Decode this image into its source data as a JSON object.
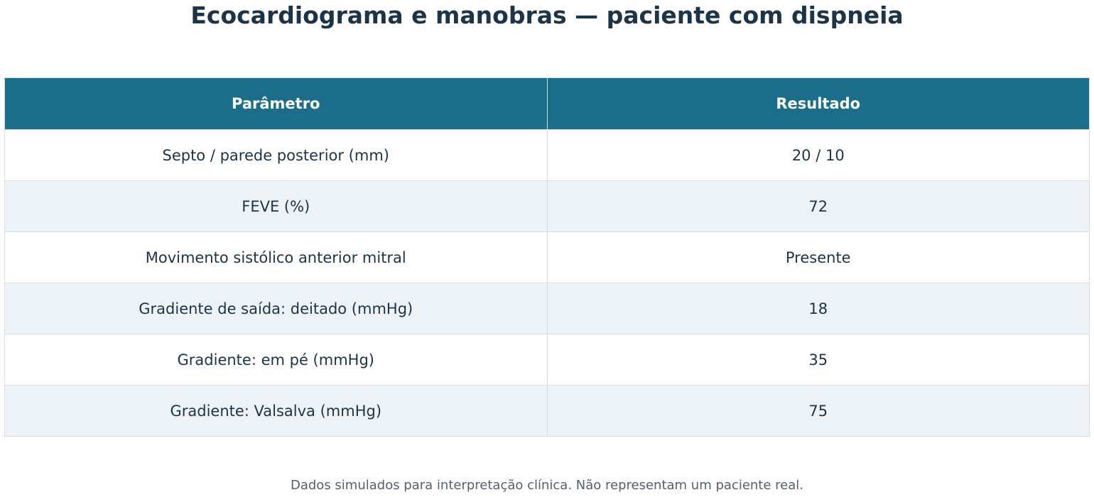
{
  "title": "Ecocardiograma e manobras — paciente com dispneia",
  "table": {
    "headers": [
      "Parâmetro",
      "Resultado"
    ],
    "rows": [
      [
        "Septo / parede posterior (mm)",
        "20 / 10"
      ],
      [
        "FEVE (%)",
        "72"
      ],
      [
        "Movimento sistólico anterior mitral",
        "Presente"
      ],
      [
        "Gradiente de saída: deitado (mmHg)",
        "18"
      ],
      [
        "Gradiente: em pé (mmHg)",
        "35"
      ],
      [
        "Gradiente: Valsalva (mmHg)",
        "75"
      ]
    ]
  },
  "footnote": "Dados simulados para interpretação clínica. Não representam um paciente real.",
  "colors": {
    "header_bg": "#1a6e89",
    "header_text": "#ffffff",
    "title_text": "#1b3448",
    "row_alt_bg": "#eef3f7",
    "border": "#d3dee7"
  }
}
